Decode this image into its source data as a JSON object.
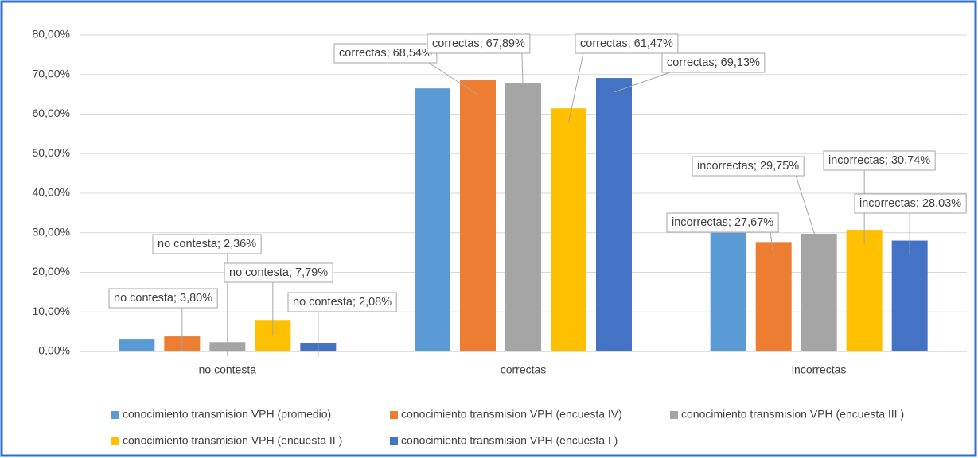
{
  "chart_data": {
    "type": "bar",
    "categories": [
      "no contesta",
      "correctas",
      "incorrectas"
    ],
    "ylim": [
      0,
      80
    ],
    "yticks": [
      {
        "value": 0,
        "label": "0,00%"
      },
      {
        "value": 10,
        "label": "10,00%"
      },
      {
        "value": 20,
        "label": "20,00%"
      },
      {
        "value": 30,
        "label": "30,00%"
      },
      {
        "value": 40,
        "label": "40,00%"
      },
      {
        "value": 50,
        "label": "50,00%"
      },
      {
        "value": 60,
        "label": "60,00%"
      },
      {
        "value": 70,
        "label": "70,00%"
      },
      {
        "value": 80,
        "label": "80,00%"
      }
    ],
    "grid": true,
    "legend": "bottom",
    "series": [
      {
        "name": "conocimiento  transmision VPH (promedio)",
        "color": "#5b9bd5",
        "values": [
          3.2,
          66.5,
          30.0
        ]
      },
      {
        "name": "conocimiento  transmision VPH (encuesta IV)",
        "color": "#ed7d31",
        "values": [
          3.8,
          68.54,
          27.67
        ],
        "value_labels": [
          "no contesta; 3,80%",
          "correctas; 68,54%",
          "incorrectas; 27,67%"
        ]
      },
      {
        "name": "conocimiento  transmision VPH (encuesta III )",
        "color": "#a5a5a5",
        "values": [
          2.36,
          67.89,
          29.75
        ],
        "value_labels": [
          "no contesta; 2,36%",
          "correctas; 67,89%",
          "incorrectas; 29,75%"
        ]
      },
      {
        "name": "conocimiento  transmision VPH (encuesta II )",
        "color": "#ffc000",
        "values": [
          7.79,
          61.47,
          30.74
        ],
        "value_labels": [
          "no contesta; 7,79%",
          "correctas; 61,47%",
          "incorrectas; 30,74%"
        ]
      },
      {
        "name": "conocimiento  transmision VPH (encuesta I )",
        "color": "#4472c4",
        "values": [
          2.08,
          69.13,
          28.03
        ],
        "value_labels": [
          "no contesta; 2,08%",
          "correctas; 69,13%",
          "incorrectas; 28,03%"
        ]
      }
    ]
  }
}
